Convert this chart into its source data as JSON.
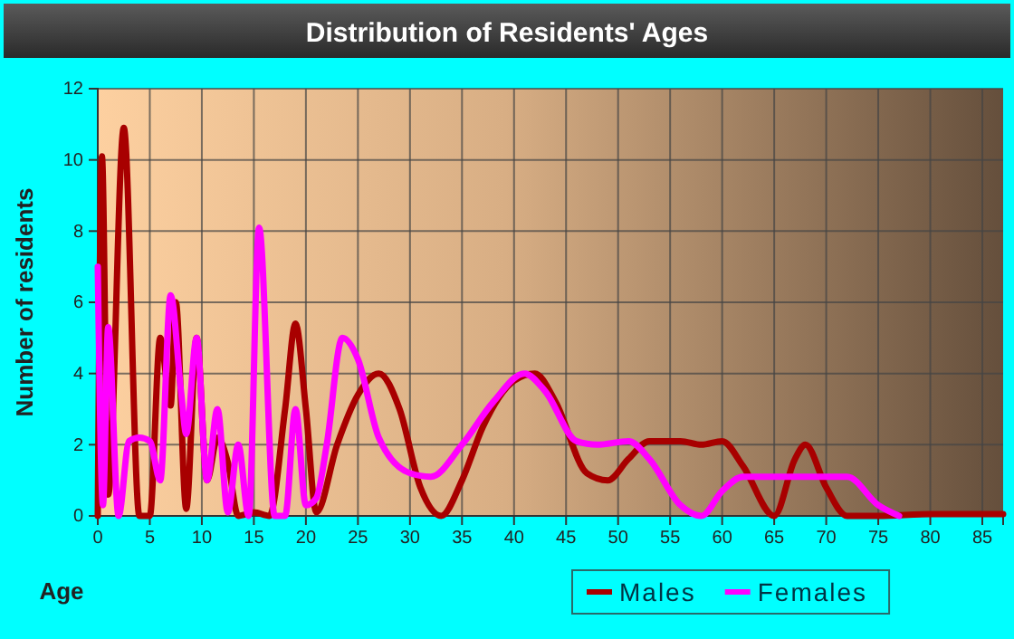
{
  "chart_data": {
    "type": "line",
    "title": "Distribution of Residents' Ages",
    "xlabel": "Age",
    "ylabel": "Number of residents",
    "xlim": [
      0,
      87
    ],
    "xticks": [
      0,
      5,
      10,
      15,
      20,
      25,
      30,
      35,
      40,
      45,
      50,
      55,
      60,
      65,
      70,
      75,
      80,
      85
    ],
    "ylim": [
      0,
      12
    ],
    "yticks": [
      0,
      2,
      4,
      6,
      8,
      10,
      12
    ],
    "grid": true,
    "legend": "bottom",
    "marker": "none",
    "line_style": "solid",
    "series": [
      {
        "name": "Males",
        "color": "#a80000",
        "x": [
          0,
          0.4,
          1,
          2.5,
          4,
          5,
          6,
          7,
          7.5,
          8.5,
          9.5,
          10.5,
          11.5,
          12.5,
          13.5,
          15,
          16.5,
          18,
          19,
          20,
          21,
          23,
          25,
          27,
          29,
          31,
          33,
          35,
          37,
          40,
          42,
          44,
          47,
          49,
          51,
          53,
          56,
          58,
          60,
          62,
          65,
          67,
          68,
          70,
          72,
          75,
          80,
          87
        ],
        "values": [
          0,
          10.1,
          0.6,
          10.9,
          0,
          0,
          5,
          3.1,
          6,
          0.2,
          5,
          1,
          2.2,
          1.5,
          0,
          0.1,
          0,
          3,
          5.4,
          3,
          0.1,
          2,
          3.4,
          4,
          3,
          0.8,
          0,
          1,
          2.5,
          3.8,
          4,
          3.2,
          1.2,
          1,
          1.6,
          2.1,
          2.1,
          2,
          2.1,
          1.4,
          0,
          1.6,
          2,
          0.8,
          0,
          0,
          0.05,
          0.05
        ]
      },
      {
        "name": "Females",
        "color": "#ff00ff",
        "x": [
          0,
          0.5,
          1,
          2,
          3,
          4,
          5,
          6,
          7,
          8,
          8.5,
          9.5,
          10.5,
          11.5,
          12.5,
          13.5,
          14.5,
          15.5,
          17,
          18,
          19,
          20,
          21,
          22,
          23.5,
          25,
          27,
          30,
          32,
          35,
          38,
          41,
          43,
          46,
          48,
          51,
          53,
          56,
          58,
          60,
          62,
          66,
          70,
          72,
          75,
          77
        ],
        "values": [
          7,
          0.3,
          5.3,
          0,
          2.1,
          2.2,
          2.1,
          1,
          6.2,
          3.5,
          2.3,
          5,
          1,
          3,
          0.1,
          2,
          0,
          8.1,
          0,
          0,
          3,
          0.3,
          0.5,
          2,
          5,
          4.4,
          2.2,
          1.2,
          1.1,
          2,
          3.2,
          4,
          3.5,
          2.1,
          2,
          2.1,
          1.6,
          0.3,
          0,
          0.7,
          1.1,
          1.1,
          1.1,
          1.1,
          0.3,
          0
        ]
      }
    ]
  }
}
